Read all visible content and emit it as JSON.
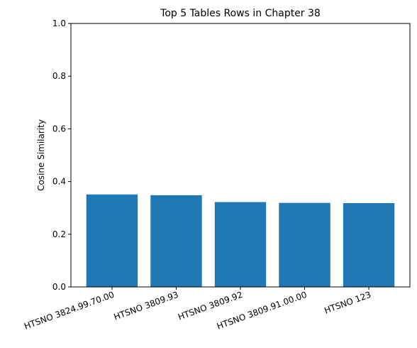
{
  "chart_data": {
    "type": "bar",
    "title": "Top 5 Tables Rows in Chapter 38",
    "xlabel": "",
    "ylabel": "Cosine Similarity",
    "categories": [
      "HTSNO 3824.99.70.00",
      "HTSNO 3809.93",
      "HTSNO 3809.92",
      "HTSNO 3809.91.00.00",
      "HTSNO 123"
    ],
    "values": [
      0.351,
      0.348,
      0.322,
      0.319,
      0.318
    ],
    "ylim": [
      0,
      1.0
    ],
    "yticks": [
      "0.0",
      "0.2",
      "0.4",
      "0.6",
      "0.8",
      "1.0"
    ],
    "bar_color": "#1f77b4",
    "grid": false,
    "legend": "none"
  }
}
